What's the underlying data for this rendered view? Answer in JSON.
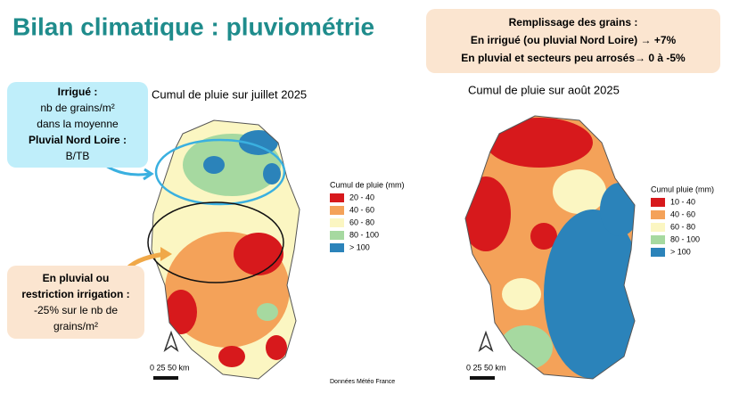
{
  "title": "Bilan climatique : pluviométrie",
  "grain_fill": {
    "title": "Remplissage des grains :",
    "lines": [
      "En irrigué (ou pluvial Nord Loire) → +7%",
      "En pluvial et secteurs peu arrosés→ 0 à -5%"
    ]
  },
  "irrigated_note": {
    "lines": [
      "Irrigué :",
      "nb de grains/m²",
      "dans la moyenne",
      "Pluvial Nord Loire :",
      "B/TB"
    ]
  },
  "rainfed_note": {
    "lines": [
      "En pluvial ou",
      "restriction irrigation :",
      "-25% sur le nb de",
      "grains/m²"
    ]
  },
  "maps": [
    {
      "title": "Cumul de pluie sur juillet 2025",
      "legend_title": "Cumul de pluie (mm)",
      "scale": "0  25 50 km",
      "legend": [
        {
          "label": "20 - 40",
          "color": "#d7191c"
        },
        {
          "label": "40 - 60",
          "color": "#f4a259"
        },
        {
          "label": "60 - 80",
          "color": "#fbf6c2"
        },
        {
          "label": "80 - 100",
          "color": "#a6d9a0"
        },
        {
          "label": "> 100",
          "color": "#2b83ba"
        }
      ]
    },
    {
      "title": "Cumul de pluie sur août 2025",
      "legend_title": "Cumul pluie (mm)",
      "scale": "0  25 50 km",
      "legend": [
        {
          "label": "10 - 40",
          "color": "#d7191c"
        },
        {
          "label": "40 - 60",
          "color": "#f4a259"
        },
        {
          "label": "60 - 80",
          "color": "#fbf6c2"
        },
        {
          "label": "80 - 100",
          "color": "#a6d9a0"
        },
        {
          "label": "> 100",
          "color": "#2b83ba"
        }
      ]
    }
  ],
  "source": "Données Météo France"
}
